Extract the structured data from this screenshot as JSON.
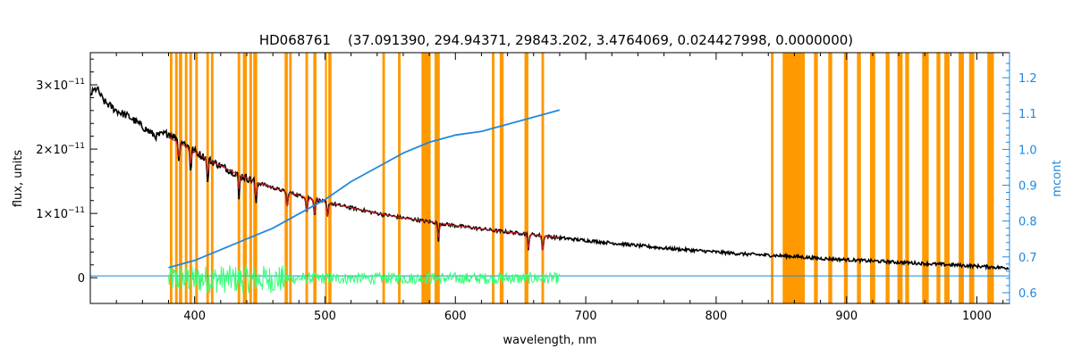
{
  "chart_data": {
    "type": "line",
    "title": "HD068761    (37.091390, 294.94371, 29843.202, 3.4764069, 0.024427998, 0.0000000)",
    "xlabel": "wavelength, nm",
    "ylabel": "flux, units",
    "y2label": "mcont",
    "xlim": [
      320,
      1025
    ],
    "ylim": [
      -4e-12,
      3.5e-11
    ],
    "y2lim": [
      0.57,
      1.27
    ],
    "grid": false,
    "x_ticks": [
      400,
      500,
      600,
      700,
      800,
      900,
      1000
    ],
    "x_tick_labels": [
      "400",
      "500",
      "600",
      "700",
      "800",
      "900",
      "1000"
    ],
    "y_ticks": [
      0,
      1e-11,
      2e-11,
      3e-11
    ],
    "y_tick_labels": [
      {
        "mant": "0",
        "exp": ""
      },
      {
        "mant": "1×10",
        "exp": "−11"
      },
      {
        "mant": "2×10",
        "exp": "−11"
      },
      {
        "mant": "3×10",
        "exp": "−11"
      }
    ],
    "y2_ticks": [
      0.6,
      0.7,
      0.8,
      0.9,
      1.0,
      1.1,
      1.2
    ],
    "y2_tick_labels": [
      "0.6",
      "0.7",
      "0.8",
      "0.9",
      "1.0",
      "1.1",
      "1.2"
    ],
    "colors": {
      "observed": "#000000",
      "model": "#cc2222",
      "mcont": "#2288dd",
      "residual": "#33ff77",
      "masked": "#ff9900",
      "axes": "#000000",
      "right_axis": "#2288dd"
    },
    "masked_regions": [
      [
        381,
        383
      ],
      [
        385,
        387
      ],
      [
        388,
        390.5
      ],
      [
        392.5,
        394.5
      ],
      [
        396,
        398
      ],
      [
        400.5,
        402.5
      ],
      [
        409,
        411
      ],
      [
        412.5,
        414.5
      ],
      [
        433,
        435
      ],
      [
        437,
        440
      ],
      [
        442,
        444
      ],
      [
        445,
        448
      ],
      [
        469,
        471.5
      ],
      [
        472.5,
        474.5
      ],
      [
        485,
        487
      ],
      [
        491,
        493.5
      ],
      [
        500,
        501.5
      ],
      [
        502.5,
        505
      ],
      [
        544,
        546
      ],
      [
        556,
        558
      ],
      [
        574,
        581
      ],
      [
        584,
        588
      ],
      [
        628,
        630
      ],
      [
        634,
        637
      ],
      [
        653,
        656
      ],
      [
        666,
        668
      ],
      [
        842,
        844
      ],
      [
        851,
        868
      ],
      [
        875,
        878
      ],
      [
        886,
        889
      ],
      [
        898,
        901
      ],
      [
        908,
        911
      ],
      [
        918,
        922
      ],
      [
        930,
        933
      ],
      [
        939,
        943
      ],
      [
        945,
        948
      ],
      [
        958,
        963
      ],
      [
        969,
        972
      ],
      [
        975,
        979
      ],
      [
        986,
        990
      ],
      [
        994,
        998
      ],
      [
        1008,
        1013
      ]
    ],
    "series": [
      {
        "key": "observed",
        "x": [
          320,
          325,
          330,
          340,
          350,
          360,
          370,
          380,
          390,
          400,
          410,
          420,
          430,
          440,
          450,
          460,
          470,
          480,
          490,
          500,
          510,
          520,
          540,
          560,
          580,
          600,
          620,
          640,
          660,
          680,
          700,
          720,
          740,
          760,
          780,
          800,
          820,
          840,
          860,
          880,
          900,
          920,
          940,
          960,
          980,
          1000,
          1025
        ],
        "y": [
          2.85e-11,
          2.95e-11,
          2.75e-11,
          2.6e-11,
          2.5e-11,
          2.35e-11,
          2.2e-11,
          2.25e-11,
          2.12e-11,
          1.97e-11,
          1.84e-11,
          1.74e-11,
          1.64e-11,
          1.55e-11,
          1.47e-11,
          1.4e-11,
          1.34e-11,
          1.28e-11,
          1.23e-11,
          1.18e-11,
          1.13e-11,
          1.09e-11,
          1e-11,
          9.3e-12,
          8.7e-12,
          8.1e-12,
          7.6e-12,
          7.1e-12,
          6.7e-12,
          6.2e-12,
          5.8e-12,
          5.4e-12,
          5e-12,
          4.6e-12,
          4.3e-12,
          4e-12,
          3.7e-12,
          3.5e-12,
          3.3e-12,
          3e-12,
          2.8e-12,
          2.6e-12,
          2.4e-12,
          2.2e-12,
          2e-12,
          1.8e-12,
          1.5e-12
        ]
      },
      {
        "key": "model",
        "x": [
          380,
          390,
          400,
          410,
          420,
          430,
          440,
          450,
          460,
          470,
          480,
          490,
          500,
          510,
          520,
          540,
          560,
          580,
          600,
          620,
          640,
          660,
          680
        ],
        "y": [
          2.18e-11,
          2.08e-11,
          1.96e-11,
          1.84e-11,
          1.74e-11,
          1.64e-11,
          1.55e-11,
          1.47e-11,
          1.4e-11,
          1.34e-11,
          1.28e-11,
          1.23e-11,
          1.18e-11,
          1.13e-11,
          1.09e-11,
          1e-11,
          9.3e-12,
          8.7e-12,
          8.1e-12,
          7.6e-12,
          7.1e-12,
          6.7e-12,
          6.2e-12
        ]
      },
      {
        "key": "mcont",
        "axis": "right",
        "x": [
          380,
          400,
          420,
          440,
          460,
          480,
          500,
          520,
          540,
          560,
          580,
          600,
          620,
          640,
          660,
          680
        ],
        "y": [
          0.67,
          0.69,
          0.72,
          0.75,
          0.78,
          0.82,
          0.86,
          0.91,
          0.95,
          0.99,
          1.02,
          1.04,
          1.05,
          1.07,
          1.09,
          1.11
        ]
      }
    ],
    "residual_range": [
      380,
      680
    ],
    "baseline_range": [
      320,
      1025
    ]
  }
}
